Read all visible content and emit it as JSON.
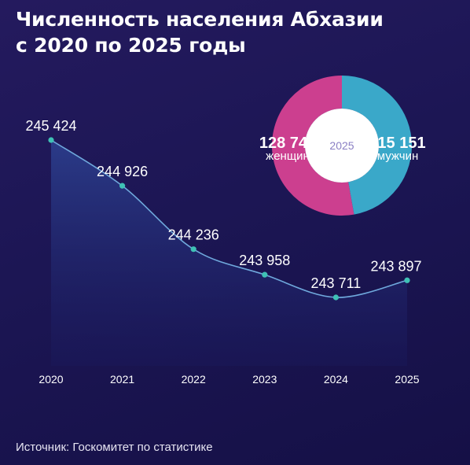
{
  "title_lines": [
    "Численность населения Абхазии",
    "с 2020 по 2025 годы"
  ],
  "source": "Источник: Госкомитет по статистике",
  "colors": {
    "background": "#1c1654",
    "line": "#6fa8dc",
    "point": "#3fc1b5",
    "women": "#cc3f8f",
    "men": "#3aa8c9",
    "donut_center_text": "#8a7fc4"
  },
  "chart_data": [
    {
      "type": "area",
      "title": "",
      "xlabel": "",
      "ylabel": "",
      "x": [
        "2020",
        "2021",
        "2022",
        "2023",
        "2024",
        "2025"
      ],
      "values": [
        245424,
        244926,
        244236,
        243958,
        243711,
        243897
      ],
      "value_labels": [
        "245 424",
        "244 926",
        "244 236",
        "243 958",
        "243 711",
        "243 897"
      ],
      "grid": false
    },
    {
      "type": "pie",
      "center_label": "2025",
      "slices": [
        {
          "value": 128746,
          "value_label": "128 746",
          "label": "женщин"
        },
        {
          "value": 115151,
          "value_label": "115 151",
          "label": "мужчин"
        }
      ]
    }
  ]
}
